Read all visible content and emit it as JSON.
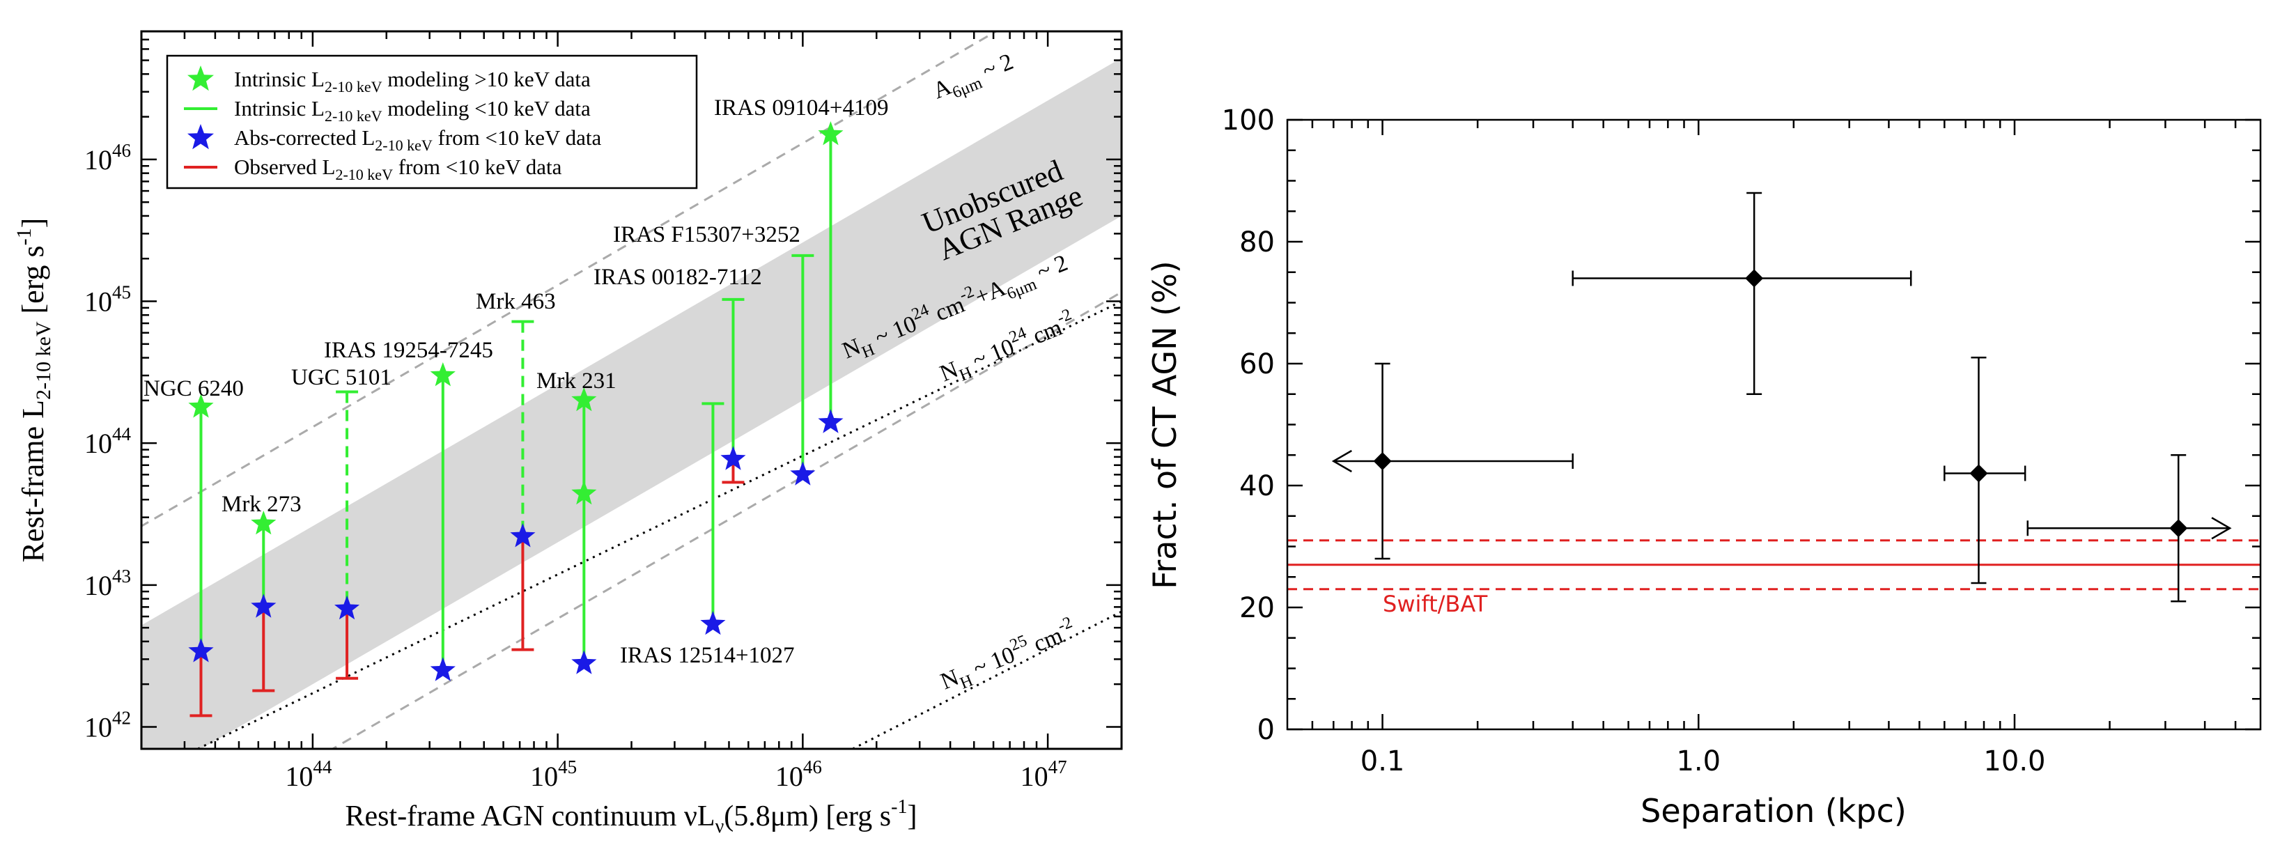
{
  "chart_data": [
    {
      "type": "scatter",
      "panel": "left",
      "xlabel": "Rest-frame AGN continuum νLν(5.8μm) [erg s⁻¹]",
      "ylabel": "Rest-frame L2-10 keV [erg s⁻¹]",
      "xscale": "log",
      "yscale": "log",
      "xlim": [
        2e+43,
        2e+47
      ],
      "ylim": [
        7e+41,
        8e+46
      ],
      "x_ticks": [
        "10",
        "10",
        "10",
        "10"
      ],
      "x_tick_exp": [
        "44",
        "45",
        "46",
        "47"
      ],
      "y_ticks": [
        "10",
        "10",
        "10",
        "10",
        "10"
      ],
      "y_tick_exp": [
        "42",
        "43",
        "44",
        "45",
        "46"
      ],
      "legend": [
        {
          "sym": "green-star",
          "pre": "Intrinsic L",
          "sub": "2-10 keV",
          "post": " modeling >10 keV data"
        },
        {
          "sym": "green-line",
          "pre": "Intrinsic L",
          "sub": "2-10 keV",
          "post": " modeling <10 keV data"
        },
        {
          "sym": "blue-star",
          "pre": "Abs-corrected L",
          "sub": "2-10 keV",
          "post": " from <10 keV data"
        },
        {
          "sym": "red-line",
          "pre": "Observed L",
          "sub": "2-10 keV",
          "post": " from <10 keV data"
        }
      ],
      "band_label": [
        "Unobscured",
        "AGN Range"
      ],
      "line_labels": {
        "a6": {
          "pre": "A",
          "sub": "6μm",
          "post": " ~ 2"
        },
        "nh24a6": {
          "pre": "N",
          "sub": "H",
          "mid": " ~ 10",
          "sup": "24",
          "mid2": " cm",
          "sup2": "-2",
          "mid3": "+A",
          "sub2": "6μm",
          "post": " ~ 2"
        },
        "nh24": {
          "pre": "N",
          "sub": "H",
          "mid": " ~ 10",
          "sup": "24",
          "mid2": " cm",
          "sup2": "-2"
        },
        "nh25": {
          "pre": "N",
          "sub": "H",
          "mid": " ~ 10",
          "sup": "25",
          "mid2": " cm",
          "sup2": "-2"
        }
      },
      "sources": [
        {
          "name": "NGC 6240",
          "x": 3.5e+43,
          "green_star": 1.8e+44,
          "blue_star": 3.4e+42,
          "red_min": 1.2e+42,
          "green_top": 1.8e+44,
          "green_style": "solid"
        },
        {
          "name": "Mrk 273",
          "x": 6.3e+43,
          "green_star": 2.7e+43,
          "blue_star": 7e+42,
          "red_min": 1.8e+42,
          "green_top": 2.7e+43,
          "green_style": "solid"
        },
        {
          "name": "UGC 5101",
          "x": 1.38e+44,
          "green_star": null,
          "blue_star": 6.8e+42,
          "red_min": 2.2e+42,
          "green_top": 2.3e+44,
          "green_style": "dashed"
        },
        {
          "name": "IRAS 19254-7245",
          "x": 3.4e+44,
          "green_star": 3e+44,
          "blue_star": 2.5e+42,
          "red_min": null,
          "green_top": 3e+44,
          "green_style": "solid"
        },
        {
          "name": "Mrk 463",
          "x": 7.2e+44,
          "green_star": null,
          "blue_star": 2.2e+43,
          "red_min": 3.5e+42,
          "green_top": 7.2e+44,
          "green_style": "dashed"
        },
        {
          "name": "Mrk 231",
          "x": 1.28e+45,
          "green_star": 2e+44,
          "green_star2": 4.4e+43,
          "blue_star": 2.8e+42,
          "red_min": null,
          "green_top": 2e+44,
          "green_style": "solid"
        },
        {
          "name": "IRAS 12514+1027",
          "x": 4.3e+45,
          "green_star": null,
          "blue_star": 5.3e+42,
          "red_min": null,
          "green_top": 1.9e+44,
          "green_style": "solid"
        },
        {
          "name": "IRAS 00182-7112",
          "x": 5.2e+45,
          "green_star": null,
          "blue_star": 7.7e+43,
          "red_min": 5.3e+43,
          "green_top": 1.03e+45,
          "green_style": "solid"
        },
        {
          "name": "IRAS F15307+3252",
          "x": 1e+46,
          "green_star": null,
          "blue_star": 6e+43,
          "red_min": null,
          "green_top": 2.1e+45,
          "green_style": "solid"
        },
        {
          "name": "IRAS 09104+4109",
          "x": 1.3e+46,
          "green_star": 1.5e+46,
          "blue_star": 1.4e+44,
          "red_min": null,
          "green_top": 1.5e+46,
          "green_style": "solid"
        }
      ]
    },
    {
      "type": "scatter",
      "panel": "right",
      "xlabel": "Separation (kpc)",
      "ylabel": "Fract. of CT AGN (%)",
      "xscale": "log",
      "xlim": [
        0.05,
        60
      ],
      "ylim": [
        0,
        100
      ],
      "x_ticks": [
        "0.1",
        "1.0",
        "10.0"
      ],
      "x_tick_values": [
        0.1,
        1.0,
        10.0
      ],
      "y_ticks": [
        "0",
        "20",
        "40",
        "60",
        "80",
        "100"
      ],
      "points": [
        {
          "x": 0.1,
          "y": 44,
          "xerr": [
            0.07,
            0.4
          ],
          "yerr": [
            28,
            60
          ],
          "arrow": "left"
        },
        {
          "x": 1.5,
          "y": 74,
          "xerr": [
            0.4,
            4.7
          ],
          "yerr": [
            55,
            88
          ],
          "arrow": null
        },
        {
          "x": 7.7,
          "y": 42,
          "xerr": [
            6.0,
            10.8
          ],
          "yerr": [
            24,
            61
          ],
          "arrow": null
        },
        {
          "x": 33,
          "y": 33,
          "xerr": [
            11,
            48
          ],
          "yerr": [
            21,
            45
          ],
          "arrow": "right"
        }
      ],
      "reference": {
        "label": "Swift/BAT",
        "value": 27,
        "lower": 23,
        "upper": 31,
        "color": "#e02020"
      }
    }
  ],
  "colors": {
    "green": "#33ee33",
    "blue": "#1a1ae6",
    "red": "#e02222",
    "band": "#d8d8d8",
    "dash": "#aaaaaa"
  }
}
